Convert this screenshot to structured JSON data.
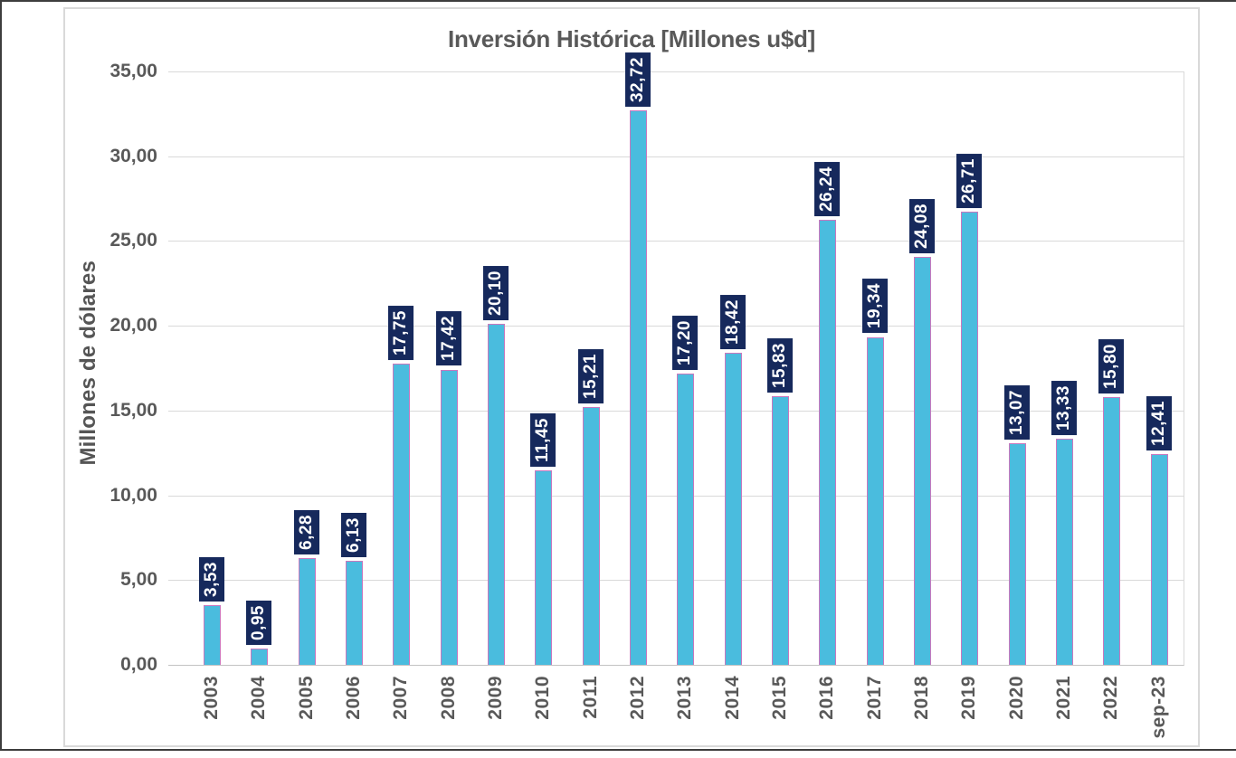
{
  "chart_data": {
    "type": "bar",
    "title": "Inversión Histórica [Millones u$d]",
    "ylabel": "Millones de dólares",
    "xlabel": "",
    "categories": [
      "2003",
      "2004",
      "2005",
      "2006",
      "2007",
      "2008",
      "2009",
      "2010",
      "2011",
      "2012",
      "2013",
      "2014",
      "2015",
      "2016",
      "2017",
      "2018",
      "2019",
      "2020",
      "2021",
      "2022",
      "sep-23"
    ],
    "values": [
      3.53,
      0.95,
      6.28,
      6.13,
      17.75,
      17.42,
      20.1,
      11.45,
      15.21,
      32.72,
      17.2,
      18.42,
      15.83,
      26.24,
      19.34,
      24.08,
      26.71,
      13.07,
      13.33,
      15.8,
      12.41
    ],
    "value_labels": [
      "3,53",
      "0,95",
      "6,28",
      "6,13",
      "17,75",
      "17,42",
      "20,10",
      "11,45",
      "15,21",
      "32,72",
      "17,20",
      "18,42",
      "15,83",
      "26,24",
      "19,34",
      "24,08",
      "26,71",
      "13,07",
      "13,33",
      "15,80",
      "12,41"
    ],
    "y_ticks": [
      "0,00",
      "5,00",
      "10,00",
      "15,00",
      "20,00",
      "25,00",
      "30,00",
      "35,00"
    ],
    "ylim": [
      0,
      35
    ],
    "grid": "horizontal",
    "legend": "none",
    "colors": {
      "bar_fill": "#4abcde",
      "bar_border": "#c978be",
      "data_label_bg": "#16295c",
      "data_label_text": "#ffffff",
      "axis_text": "#595959",
      "gridline": "#d9d9d9"
    }
  }
}
